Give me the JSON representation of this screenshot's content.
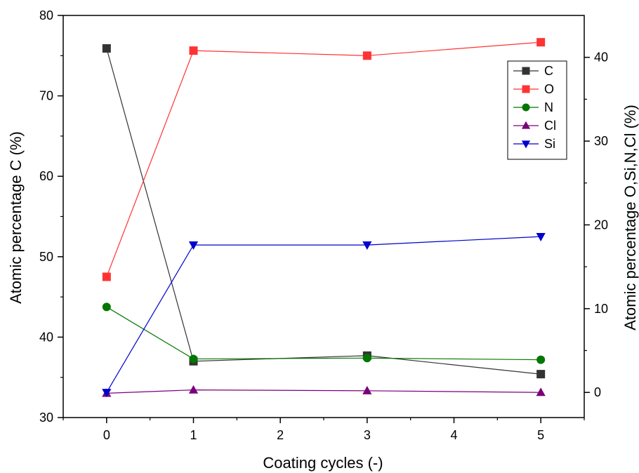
{
  "chart_data": {
    "type": "line",
    "xlabel": "Coating cycles (-)",
    "ylabel_left": "Atomic percentage C (%)",
    "ylabel_right": "Atomic percentage O,Si,N,Cl (%)",
    "xlim": [
      -0.5,
      5.5
    ],
    "ylim_left": [
      30,
      80
    ],
    "ylim_right": [
      -3,
      45
    ],
    "x_ticks": [
      0,
      1,
      2,
      3,
      4,
      5
    ],
    "y_left_ticks": [
      30,
      40,
      50,
      60,
      70,
      80
    ],
    "y_right_ticks": [
      0,
      10,
      20,
      30,
      40
    ],
    "grid": false,
    "legend_position": "top-right",
    "series": [
      {
        "name": "C",
        "axis": "left",
        "color": "#333333",
        "marker": "square",
        "x": [
          0,
          1,
          3,
          5
        ],
        "y": [
          75.9,
          37.0,
          37.7,
          35.4
        ]
      },
      {
        "name": "O",
        "axis": "right",
        "color": "#ff3333",
        "marker": "square",
        "x": [
          0,
          1,
          3,
          5
        ],
        "y": [
          13.8,
          40.8,
          40.2,
          41.8
        ]
      },
      {
        "name": "N",
        "axis": "right",
        "color": "#007700",
        "marker": "circle",
        "x": [
          0,
          1,
          3,
          5
        ],
        "y": [
          10.2,
          4.0,
          4.1,
          3.9
        ]
      },
      {
        "name": "Cl",
        "axis": "right",
        "color": "#7a007a",
        "marker": "triangle-up",
        "x": [
          0,
          1,
          3,
          5
        ],
        "y": [
          -0.1,
          0.3,
          0.2,
          0.0
        ]
      },
      {
        "name": "Si",
        "axis": "right",
        "color": "#0000cc",
        "marker": "triangle-down",
        "x": [
          0,
          1,
          3,
          5
        ],
        "y": [
          0.0,
          17.6,
          17.6,
          18.6
        ]
      }
    ]
  }
}
